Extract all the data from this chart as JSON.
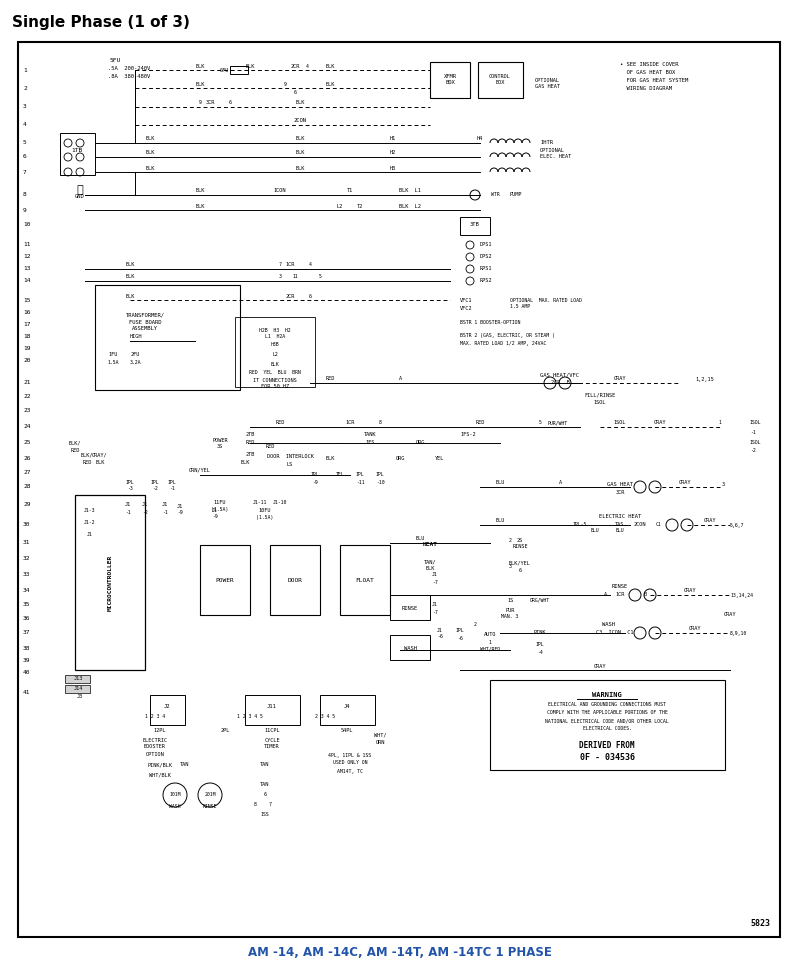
{
  "title": "Single Phase (1 of 3)",
  "bottom_label": "AM -14, AM -14C, AM -14T, AM -14TC 1 PHASE",
  "page_number": "5823",
  "derived_from": "DERIVED FROM\n0F - 034536",
  "warning_text": "WARNING\nELECTRICAL AND GROUNDING CONNECTIONS MUST\nCOMPLY WITH THE APPLICABLE PORTIONS OF THE\nNATIONAL ELECTRICAL CODE AND/OR OTHER LOCAL\nELECTRICAL CODES.",
  "bg_color": "#ffffff",
  "line_color": "#000000",
  "title_color": "#000000",
  "bottom_label_color": "#2255aa",
  "border_color": "#000000"
}
